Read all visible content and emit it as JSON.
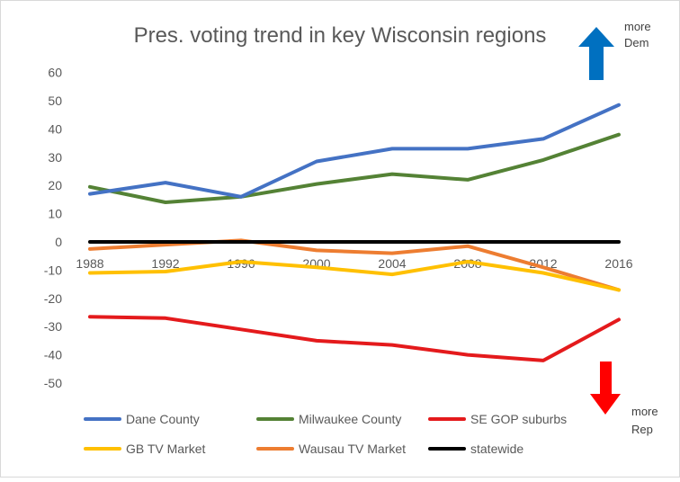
{
  "chart_data": {
    "type": "line",
    "title": "Pres. voting trend in key Wisconsin regions",
    "xlabel": "",
    "ylabel": "",
    "categories": [
      "1988",
      "1992",
      "1996",
      "2000",
      "2004",
      "2008",
      "2012",
      "2016"
    ],
    "y_ticks": [
      "60",
      "50",
      "40",
      "30",
      "20",
      "10",
      "0",
      "-10",
      "-20",
      "-30",
      "-40",
      "-50"
    ],
    "ylim": [
      -60,
      60
    ],
    "grid": false,
    "legend_position": "bottom",
    "series": [
      {
        "name": "Dane County",
        "color": "#4472C4",
        "values": [
          17,
          21,
          16,
          28.5,
          33,
          33,
          36.5,
          48.5
        ]
      },
      {
        "name": "Milwaukee County",
        "color": "#548235",
        "values": [
          19.5,
          14,
          16,
          20.5,
          24,
          22,
          29,
          38
        ]
      },
      {
        "name": "SE GOP suburbs",
        "color": "#E41A1C",
        "values": [
          -26.5,
          -27,
          -31,
          -35,
          -36.5,
          -40,
          -42,
          -27.5
        ]
      },
      {
        "name": "GB TV Market",
        "color": "#FFC000",
        "values": [
          -11,
          -10.5,
          -7,
          -9,
          -11.5,
          -7,
          -11,
          -17
        ]
      },
      {
        "name": "Wausau TV Market",
        "color": "#ED7D31",
        "values": [
          -2.5,
          -1,
          0.5,
          -3,
          -4,
          -1.5,
          -9,
          -17
        ]
      },
      {
        "name": "statewide",
        "color": "#000000",
        "values": [
          0,
          0,
          0,
          0,
          0,
          0,
          0,
          0
        ]
      }
    ],
    "annotations": [
      {
        "text": "more",
        "text2": "Dem",
        "arrow": "up",
        "color": "#0070C0"
      },
      {
        "text": "more",
        "text2": "Rep",
        "arrow": "down",
        "color": "#FF0000"
      }
    ]
  }
}
